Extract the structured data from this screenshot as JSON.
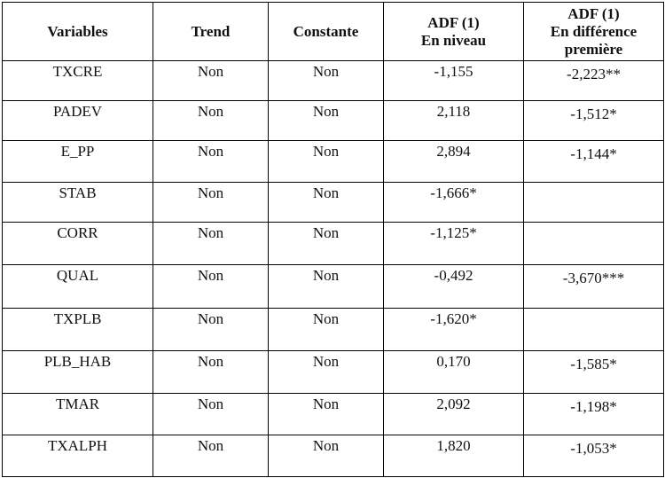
{
  "table": {
    "header": [
      [
        "Variables"
      ],
      [
        "Trend"
      ],
      [
        "Constante"
      ],
      [
        "ADF (1)",
        "En niveau"
      ],
      [
        "ADF (1)",
        "En différence",
        "première"
      ]
    ],
    "rows": [
      [
        "TXCRE",
        "Non",
        "Non",
        "-1,155",
        "-2,223**"
      ],
      [
        "PADEV",
        "Non",
        "Non",
        "2,118",
        "-1,512*"
      ],
      [
        "E_PP",
        "Non",
        "Non",
        "2,894",
        "-1,144*"
      ],
      [
        "STAB",
        "Non",
        "Non",
        "-1,666*",
        null
      ],
      [
        "CORR",
        "Non",
        "Non",
        "-1,125*",
        null
      ],
      [
        "QUAL",
        "Non",
        "Non",
        "-0,492",
        "-3,670***"
      ],
      [
        "TXPLB",
        "Non",
        "Non",
        "-1,620*",
        null
      ],
      [
        "PLB_HAB",
        "Non",
        "Non",
        "0,170",
        "-1,585*"
      ],
      [
        "TMAR",
        "Non",
        "Non",
        "2,092",
        "-1,198*"
      ],
      [
        "TXALPH",
        "Non",
        "Non",
        "1,820",
        "-1,053*"
      ]
    ]
  }
}
